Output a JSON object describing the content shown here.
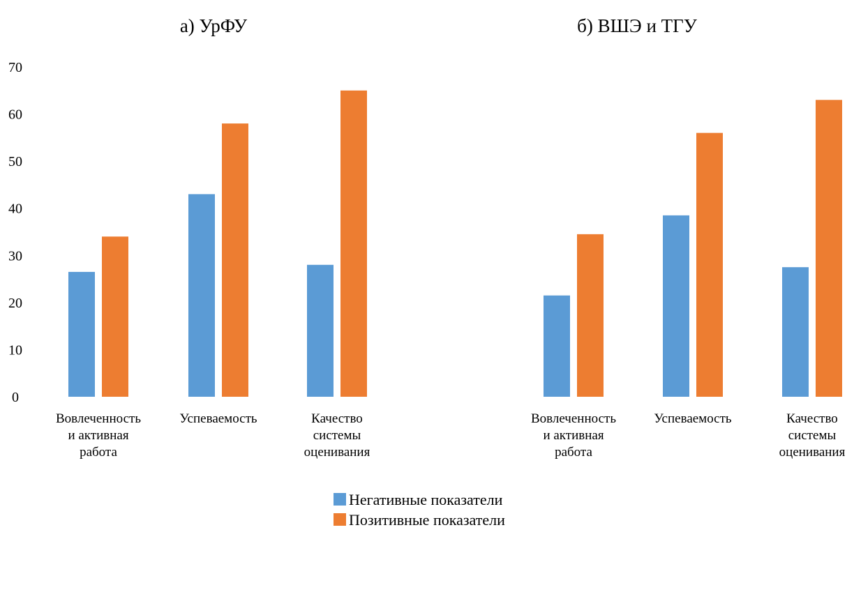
{
  "colors": {
    "negative": "#5B9BD5",
    "positive": "#ED7D31"
  },
  "legend": {
    "placement": "bottom",
    "items": [
      {
        "label": "Негативные показатели",
        "color": "#5B9BD5"
      },
      {
        "label": "Позитивные показатели",
        "color": "#ED7D31"
      }
    ]
  },
  "chart_data": [
    {
      "type": "bar",
      "title": "а) УрФУ",
      "categories": [
        [
          "Вовлеченность",
          "и активная",
          "работа"
        ],
        [
          "Успеваемость"
        ],
        [
          "Качество",
          "системы",
          "оценивания"
        ]
      ],
      "series": [
        {
          "name": "Негативные показатели",
          "values": [
            26.5,
            43,
            28
          ]
        },
        {
          "name": "Позитивные показатели",
          "values": [
            34,
            58,
            65
          ]
        }
      ],
      "ylim": [
        0,
        70
      ],
      "yticks": [
        0,
        10,
        20,
        30,
        40,
        50,
        60,
        70
      ],
      "grid": false
    },
    {
      "type": "bar",
      "title": "б) ВШЭ и ТГУ",
      "categories": [
        [
          "Вовлеченность",
          "и активная",
          "работа"
        ],
        [
          "Успеваемость"
        ],
        [
          "Качество",
          "системы",
          "оценивания"
        ]
      ],
      "series": [
        {
          "name": "Негативные показатели",
          "values": [
            21.5,
            38.5,
            27.5
          ]
        },
        {
          "name": "Позитивные показатели",
          "values": [
            34.5,
            56,
            63
          ]
        }
      ],
      "ylim": [
        0,
        70
      ],
      "grid": false
    }
  ]
}
